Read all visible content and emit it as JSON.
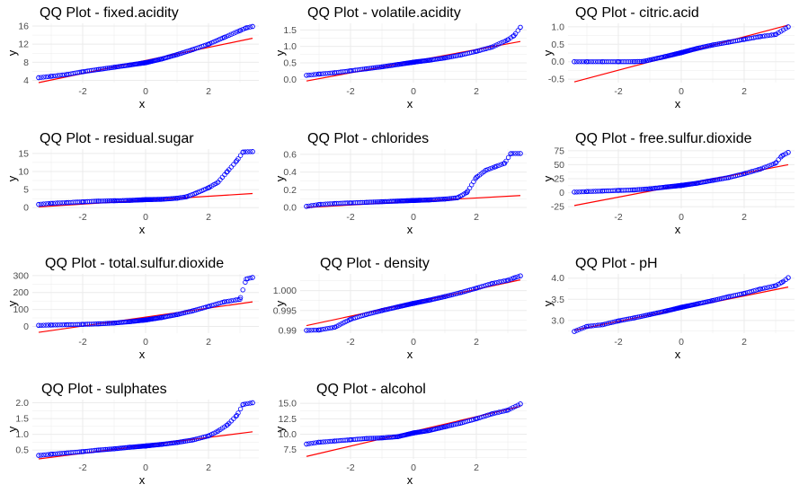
{
  "colors": {
    "points": "#0000ff",
    "line": "#ff0000",
    "grid": "#ebebeb",
    "background": "#ffffff"
  },
  "chart_data": [
    {
      "type": "scatter",
      "title": "QQ Plot - fixed.acidity",
      "xlabel": "x",
      "ylabel": "y",
      "xlim": [
        -3.6,
        3.6
      ],
      "ylim": [
        3.5,
        16.6
      ],
      "xticks": [
        -2,
        0,
        2
      ],
      "yticks": [
        4,
        8,
        12,
        16
      ],
      "theoretical_quantiles": [
        -3.4,
        -3.0,
        -2.5,
        -2.0,
        -1.5,
        -1.0,
        -0.5,
        0.0,
        0.5,
        1.0,
        1.5,
        2.0,
        2.5,
        3.0,
        3.2,
        3.4
      ],
      "sample_quantiles": [
        4.6,
        4.9,
        5.3,
        5.9,
        6.4,
        6.9,
        7.4,
        7.9,
        8.7,
        9.7,
        10.8,
        12.0,
        13.5,
        15.0,
        15.6,
        15.9
      ],
      "reference_line": {
        "x": [
          -3.4,
          3.4
        ],
        "y": [
          3.5,
          13.3
        ]
      },
      "grid": true,
      "legend": "none"
    },
    {
      "type": "scatter",
      "title": "QQ Plot - volatile.acidity",
      "xlabel": "x",
      "ylabel": "y",
      "xlim": [
        -3.6,
        3.6
      ],
      "ylim": [
        -0.1,
        1.7
      ],
      "xticks": [
        -2,
        0,
        2
      ],
      "yticks": [
        0.0,
        0.5,
        1.0,
        1.5
      ],
      "theoretical_quantiles": [
        -3.4,
        -3.0,
        -2.5,
        -2.0,
        -1.5,
        -1.0,
        -0.5,
        0.0,
        0.5,
        1.0,
        1.5,
        2.0,
        2.5,
        3.0,
        3.2,
        3.4
      ],
      "sample_quantiles": [
        0.12,
        0.16,
        0.2,
        0.26,
        0.32,
        0.38,
        0.45,
        0.52,
        0.58,
        0.65,
        0.74,
        0.85,
        0.98,
        1.2,
        1.33,
        1.58
      ],
      "reference_line": {
        "x": [
          -3.4,
          3.4
        ],
        "y": [
          -0.05,
          1.15
        ]
      },
      "grid": true,
      "legend": "none"
    },
    {
      "type": "scatter",
      "title": "QQ Plot - citric.acid",
      "xlabel": "x",
      "ylabel": "y",
      "xlim": [
        -3.6,
        3.6
      ],
      "ylim": [
        -0.6,
        1.1
      ],
      "xticks": [
        -2,
        0,
        2
      ],
      "yticks": [
        -0.5,
        0.0,
        0.5,
        1.0
      ],
      "theoretical_quantiles": [
        -3.4,
        -3.0,
        -2.5,
        -2.0,
        -1.5,
        -1.2,
        -1.0,
        -0.5,
        0.0,
        0.5,
        1.0,
        1.5,
        2.0,
        2.5,
        3.0,
        3.4
      ],
      "sample_quantiles": [
        0.0,
        0.0,
        0.0,
        0.0,
        0.0,
        0.01,
        0.05,
        0.15,
        0.26,
        0.38,
        0.48,
        0.56,
        0.64,
        0.72,
        0.78,
        1.0
      ],
      "reference_line": {
        "x": [
          -3.4,
          3.4
        ],
        "y": [
          -0.58,
          1.05
        ]
      },
      "grid": true,
      "legend": "none"
    },
    {
      "type": "scatter",
      "title": "QQ Plot - residual.sugar",
      "xlabel": "x",
      "ylabel": "y",
      "xlim": [
        -3.6,
        3.6
      ],
      "ylim": [
        -0.2,
        16.2
      ],
      "xticks": [
        -2,
        0,
        2
      ],
      "yticks": [
        0,
        5,
        10,
        15
      ],
      "theoretical_quantiles": [
        -3.4,
        -3.0,
        -2.5,
        -2.0,
        -1.5,
        -1.0,
        -0.5,
        0.0,
        0.5,
        1.0,
        1.3,
        1.6,
        2.0,
        2.3,
        2.6,
        2.9,
        3.1,
        3.4
      ],
      "sample_quantiles": [
        0.9,
        1.2,
        1.4,
        1.6,
        1.8,
        1.9,
        2.0,
        2.2,
        2.3,
        2.6,
        3.0,
        4.0,
        5.5,
        7.0,
        10.0,
        13.0,
        15.4,
        15.5
      ],
      "reference_line": {
        "x": [
          -3.4,
          3.4
        ],
        "y": [
          0.2,
          3.9
        ]
      },
      "grid": true,
      "legend": "none"
    },
    {
      "type": "scatter",
      "title": "QQ Plot - chlorides",
      "xlabel": "x",
      "ylabel": "y",
      "xlim": [
        -3.6,
        3.6
      ],
      "ylim": [
        -0.01,
        0.66
      ],
      "xticks": [
        -2,
        0,
        2
      ],
      "yticks": [
        0.0,
        0.2,
        0.4,
        0.6
      ],
      "theoretical_quantiles": [
        -3.4,
        -3.0,
        -2.5,
        -2.0,
        -1.5,
        -1.0,
        -0.5,
        0.0,
        0.5,
        1.0,
        1.4,
        1.7,
        2.0,
        2.3,
        2.6,
        2.9,
        3.1,
        3.4
      ],
      "sample_quantiles": [
        0.012,
        0.034,
        0.045,
        0.052,
        0.058,
        0.065,
        0.072,
        0.079,
        0.085,
        0.095,
        0.11,
        0.17,
        0.34,
        0.42,
        0.46,
        0.5,
        0.61,
        0.61
      ],
      "reference_line": {
        "x": [
          -3.4,
          3.4
        ],
        "y": [
          0.0,
          0.135
        ]
      },
      "grid": true,
      "legend": "none"
    },
    {
      "type": "scatter",
      "title": "QQ Plot - free.sulfur.dioxide",
      "xlabel": "x",
      "ylabel": "y",
      "xlim": [
        -3.6,
        3.6
      ],
      "ylim": [
        -28,
        78
      ],
      "xticks": [
        -2,
        0,
        2
      ],
      "yticks": [
        -25,
        0,
        25,
        50,
        75
      ],
      "theoretical_quantiles": [
        -3.4,
        -3.0,
        -2.5,
        -2.0,
        -1.5,
        -1.0,
        -0.5,
        0.0,
        0.5,
        1.0,
        1.5,
        2.0,
        2.5,
        3.0,
        3.2,
        3.4
      ],
      "sample_quantiles": [
        1,
        2,
        3,
        4,
        5,
        7,
        10,
        13,
        17,
        22,
        27,
        34,
        42,
        53,
        66,
        72
      ],
      "reference_line": {
        "x": [
          -3.4,
          3.4
        ],
        "y": [
          -23,
          50
        ]
      },
      "grid": true,
      "legend": "none"
    },
    {
      "type": "scatter",
      "title": "QQ Plot - total.sulfur.dioxide",
      "xlabel": "x",
      "ylabel": "y",
      "xlim": [
        -3.6,
        3.6
      ],
      "ylim": [
        -40,
        310
      ],
      "xticks": [
        -2,
        0,
        2
      ],
      "yticks": [
        0,
        100,
        200,
        300
      ],
      "theoretical_quantiles": [
        -3.4,
        -3.0,
        -2.5,
        -2.0,
        -1.5,
        -1.0,
        -0.5,
        0.0,
        0.5,
        1.0,
        1.5,
        2.0,
        2.5,
        3.0,
        3.2,
        3.4
      ],
      "sample_quantiles": [
        6,
        8,
        10,
        12,
        15,
        20,
        28,
        38,
        52,
        70,
        92,
        118,
        145,
        160,
        280,
        289
      ],
      "reference_line": {
        "x": [
          -3.4,
          3.4
        ],
        "y": [
          -35,
          145
        ]
      },
      "grid": true,
      "legend": "none"
    },
    {
      "type": "scatter",
      "title": "QQ Plot - density",
      "xlabel": "x",
      "ylabel": "y",
      "xlim": [
        -3.6,
        3.6
      ],
      "ylim": [
        0.9893,
        1.0042
      ],
      "xticks": [
        -2,
        0,
        2
      ],
      "yticks": [
        0.99,
        0.995,
        1.0
      ],
      "theoretical_quantiles": [
        -3.4,
        -3.0,
        -2.5,
        -2.0,
        -1.5,
        -1.0,
        -0.5,
        0.0,
        0.5,
        1.0,
        1.5,
        2.0,
        2.5,
        3.0,
        3.2,
        3.4
      ],
      "sample_quantiles": [
        0.99,
        0.9901,
        0.9908,
        0.9928,
        0.994,
        0.995,
        0.9959,
        0.9968,
        0.9976,
        0.9985,
        0.9995,
        1.0006,
        1.0018,
        1.0026,
        1.0032,
        1.0037
      ],
      "reference_line": {
        "x": [
          -3.4,
          3.4
        ],
        "y": [
          0.9912,
          1.0027
        ]
      },
      "grid": true,
      "legend": "none"
    },
    {
      "type": "scatter",
      "title": "QQ Plot - pH",
      "xlabel": "x",
      "ylabel": "y",
      "xlim": [
        -3.6,
        3.6
      ],
      "ylim": [
        2.7,
        4.1
      ],
      "xticks": [
        -2,
        0,
        2
      ],
      "yticks": [
        3.0,
        3.5,
        4.0
      ],
      "theoretical_quantiles": [
        -3.4,
        -3.0,
        -2.5,
        -2.0,
        -1.5,
        -1.0,
        -0.5,
        0.0,
        0.5,
        1.0,
        1.5,
        2.0,
        2.5,
        3.0,
        3.2,
        3.4
      ],
      "sample_quantiles": [
        2.74,
        2.86,
        2.9,
        2.99,
        3.06,
        3.14,
        3.22,
        3.31,
        3.39,
        3.47,
        3.56,
        3.64,
        3.74,
        3.82,
        3.9,
        4.01
      ],
      "reference_line": {
        "x": [
          -3.4,
          3.4
        ],
        "y": [
          2.77,
          3.79
        ]
      },
      "grid": true,
      "legend": "none"
    },
    {
      "type": "scatter",
      "title": "QQ Plot - sulphates",
      "xlabel": "x",
      "ylabel": "y",
      "xlim": [
        -3.6,
        3.6
      ],
      "ylim": [
        0.22,
        2.1
      ],
      "xticks": [
        -2,
        0,
        2
      ],
      "yticks": [
        0.5,
        1.0,
        1.5,
        2.0
      ],
      "theoretical_quantiles": [
        -3.4,
        -3.0,
        -2.5,
        -2.0,
        -1.5,
        -1.0,
        -0.5,
        0.0,
        0.5,
        1.0,
        1.5,
        2.0,
        2.3,
        2.6,
        2.9,
        3.1,
        3.4
      ],
      "sample_quantiles": [
        0.33,
        0.37,
        0.41,
        0.45,
        0.5,
        0.54,
        0.59,
        0.63,
        0.68,
        0.74,
        0.82,
        0.95,
        1.1,
        1.3,
        1.6,
        1.95,
        2.0
      ],
      "reference_line": {
        "x": [
          -3.4,
          3.4
        ],
        "y": [
          0.22,
          1.08
        ]
      },
      "grid": true,
      "legend": "none"
    },
    {
      "type": "scatter",
      "title": "QQ Plot - alcohol",
      "xlabel": "x",
      "ylabel": "y",
      "xlim": [
        -3.6,
        3.6
      ],
      "ylim": [
        6.0,
        15.6
      ],
      "xticks": [
        -2,
        0,
        2
      ],
      "yticks": [
        7.5,
        10.0,
        12.5,
        15.0
      ],
      "theoretical_quantiles": [
        -3.4,
        -3.0,
        -2.5,
        -2.0,
        -1.5,
        -1.0,
        -0.5,
        0.0,
        0.5,
        1.0,
        1.5,
        2.0,
        2.5,
        3.0,
        3.4
      ],
      "sample_quantiles": [
        8.4,
        8.7,
        8.9,
        9.1,
        9.3,
        9.4,
        9.6,
        10.2,
        10.6,
        11.2,
        11.8,
        12.5,
        13.3,
        13.9,
        14.9
      ],
      "reference_line": {
        "x": [
          -3.4,
          3.4
        ],
        "y": [
          6.4,
          14.5
        ]
      },
      "grid": true,
      "legend": "none"
    }
  ]
}
